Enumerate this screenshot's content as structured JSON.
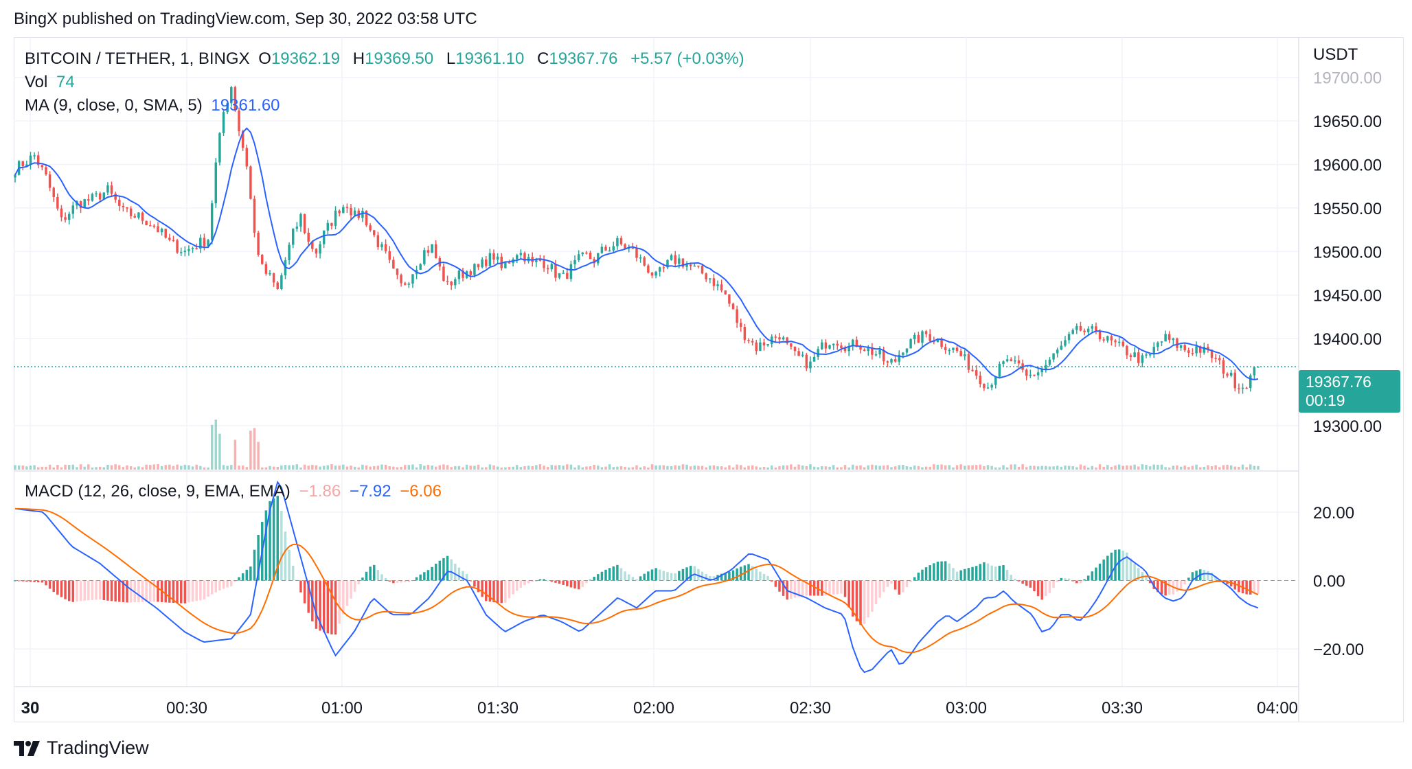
{
  "publisher_line": "BingX published on TradingView.com, Sep 30, 2022 03:58 UTC",
  "legend": {
    "symbol": "BITCOIN / TETHER, 1, BINGX",
    "o_label": "O",
    "o_value": "19362.19",
    "h_label": "H",
    "h_value": "19369.50",
    "l_label": "L",
    "l_value": "19361.10",
    "c_label": "C",
    "c_value": "19367.76",
    "change": "+5.57 (+0.03%)",
    "vol_label": "Vol",
    "vol_value": "74",
    "ma_label": "MA (9, close, 0, SMA, 5)",
    "ma_value": "19361.60",
    "macd_label": "MACD (12, 26, close, 9, EMA, EMA)",
    "macd_hist": "−1.86",
    "macd_line": "−7.92",
    "macd_signal": "−6.06"
  },
  "price_tag": {
    "price": "19367.76",
    "countdown": "00:19"
  },
  "axis_unit": "USDT",
  "brand": "TradingView",
  "colors": {
    "up": "#26a69a",
    "down": "#ef5350",
    "ma": "#2962ff",
    "signal": "#ff6d00",
    "grid": "#f0f3fa"
  },
  "chart_data": {
    "type": "candlestick",
    "price_axis": {
      "ticks": [
        "19700.00",
        "19650.00",
        "19600.00",
        "19550.00",
        "19500.00",
        "19450.00",
        "19400.00",
        "19300.00"
      ],
      "range": [
        19270,
        19710
      ]
    },
    "macd_axis": {
      "ticks": [
        "20.00",
        "0.00",
        "−20.00"
      ],
      "range": [
        -30,
        30
      ]
    },
    "time_axis": {
      "ticks": [
        "30",
        "00:30",
        "01:00",
        "01:30",
        "02:00",
        "02:30",
        "03:00",
        "03:30",
        "04:00"
      ]
    },
    "anchors": [
      [
        0,
        19595
      ],
      [
        5,
        19610
      ],
      [
        8,
        19585
      ],
      [
        12,
        19535
      ],
      [
        16,
        19555
      ],
      [
        20,
        19560
      ],
      [
        24,
        19570
      ],
      [
        28,
        19545
      ],
      [
        32,
        19540
      ],
      [
        36,
        19530
      ],
      [
        40,
        19510
      ],
      [
        44,
        19500
      ],
      [
        48,
        19510
      ],
      [
        50,
        19515
      ],
      [
        52,
        19600
      ],
      [
        54,
        19660
      ],
      [
        56,
        19690
      ],
      [
        58,
        19640
      ],
      [
        60,
        19600
      ],
      [
        62,
        19520
      ],
      [
        64,
        19480
      ],
      [
        66,
        19470
      ],
      [
        68,
        19455
      ],
      [
        70,
        19490
      ],
      [
        72,
        19520
      ],
      [
        74,
        19540
      ],
      [
        76,
        19510
      ],
      [
        78,
        19500
      ],
      [
        80,
        19520
      ],
      [
        82,
        19535
      ],
      [
        84,
        19550
      ],
      [
        86,
        19555
      ],
      [
        88,
        19540
      ],
      [
        90,
        19545
      ],
      [
        92,
        19525
      ],
      [
        94,
        19510
      ],
      [
        96,
        19495
      ],
      [
        98,
        19475
      ],
      [
        100,
        19460
      ],
      [
        102,
        19470
      ],
      [
        104,
        19485
      ],
      [
        106,
        19500
      ],
      [
        108,
        19505
      ],
      [
        110,
        19480
      ],
      [
        112,
        19460
      ],
      [
        114,
        19470
      ],
      [
        116,
        19475
      ],
      [
        118,
        19480
      ],
      [
        120,
        19480
      ],
      [
        122,
        19490
      ],
      [
        124,
        19495
      ],
      [
        126,
        19480
      ],
      [
        128,
        19490
      ],
      [
        130,
        19500
      ],
      [
        132,
        19495
      ],
      [
        134,
        19485
      ],
      [
        136,
        19490
      ],
      [
        138,
        19485
      ],
      [
        140,
        19475
      ],
      [
        142,
        19470
      ],
      [
        144,
        19480
      ],
      [
        146,
        19490
      ],
      [
        148,
        19495
      ],
      [
        150,
        19490
      ],
      [
        152,
        19500
      ],
      [
        154,
        19505
      ],
      [
        156,
        19510
      ],
      [
        158,
        19505
      ],
      [
        160,
        19500
      ],
      [
        162,
        19490
      ],
      [
        164,
        19480
      ],
      [
        166,
        19470
      ],
      [
        168,
        19480
      ],
      [
        170,
        19490
      ],
      [
        172,
        19490
      ],
      [
        174,
        19485
      ],
      [
        176,
        19480
      ],
      [
        178,
        19475
      ],
      [
        180,
        19470
      ],
      [
        182,
        19460
      ],
      [
        184,
        19450
      ],
      [
        186,
        19430
      ],
      [
        188,
        19410
      ],
      [
        190,
        19400
      ],
      [
        192,
        19390
      ],
      [
        194,
        19395
      ],
      [
        196,
        19400
      ],
      [
        198,
        19405
      ],
      [
        200,
        19390
      ],
      [
        202,
        19380
      ],
      [
        204,
        19375
      ],
      [
        206,
        19370
      ],
      [
        208,
        19385
      ],
      [
        210,
        19395
      ],
      [
        212,
        19400
      ],
      [
        214,
        19395
      ],
      [
        216,
        19390
      ],
      [
        218,
        19395
      ],
      [
        220,
        19390
      ],
      [
        222,
        19385
      ],
      [
        224,
        19380
      ],
      [
        226,
        19370
      ],
      [
        228,
        19375
      ],
      [
        230,
        19390
      ],
      [
        232,
        19395
      ],
      [
        234,
        19400
      ],
      [
        236,
        19405
      ],
      [
        238,
        19400
      ],
      [
        240,
        19395
      ],
      [
        242,
        19390
      ],
      [
        244,
        19385
      ],
      [
        246,
        19375
      ],
      [
        248,
        19365
      ],
      [
        250,
        19355
      ],
      [
        252,
        19345
      ],
      [
        254,
        19360
      ],
      [
        256,
        19370
      ],
      [
        258,
        19375
      ],
      [
        260,
        19365
      ],
      [
        262,
        19355
      ],
      [
        264,
        19360
      ],
      [
        266,
        19365
      ],
      [
        268,
        19375
      ],
      [
        270,
        19385
      ],
      [
        272,
        19395
      ],
      [
        274,
        19405
      ],
      [
        276,
        19410
      ],
      [
        278,
        19405
      ],
      [
        280,
        19410
      ],
      [
        282,
        19400
      ],
      [
        284,
        19395
      ],
      [
        286,
        19390
      ],
      [
        288,
        19385
      ],
      [
        290,
        19380
      ],
      [
        292,
        19375
      ],
      [
        294,
        19380
      ],
      [
        296,
        19395
      ],
      [
        298,
        19400
      ],
      [
        300,
        19395
      ],
      [
        302,
        19390
      ],
      [
        304,
        19385
      ],
      [
        306,
        19390
      ],
      [
        308,
        19385
      ],
      [
        310,
        19380
      ],
      [
        312,
        19370
      ],
      [
        314,
        19360
      ],
      [
        316,
        19350
      ],
      [
        318,
        19345
      ],
      [
        320,
        19355
      ],
      [
        322,
        19368
      ]
    ],
    "candle_count": 323,
    "last_close": 19367.76,
    "macd_anchors": [
      [
        0,
        21
      ],
      [
        6,
        20
      ],
      [
        12,
        10
      ],
      [
        18,
        5
      ],
      [
        24,
        -2
      ],
      [
        30,
        -8
      ],
      [
        36,
        -15
      ],
      [
        40,
        -18
      ],
      [
        46,
        -17
      ],
      [
        50,
        -10
      ],
      [
        52,
        5
      ],
      [
        54,
        20
      ],
      [
        56,
        30
      ],
      [
        60,
        10
      ],
      [
        64,
        -10
      ],
      [
        68,
        -22
      ],
      [
        72,
        -15
      ],
      [
        76,
        -5
      ],
      [
        80,
        -10
      ],
      [
        84,
        -10
      ],
      [
        88,
        -5
      ],
      [
        92,
        3
      ],
      [
        96,
        0
      ],
      [
        100,
        -10
      ],
      [
        104,
        -15
      ],
      [
        108,
        -12
      ],
      [
        112,
        -10
      ],
      [
        116,
        -12
      ],
      [
        120,
        -15
      ],
      [
        124,
        -10
      ],
      [
        128,
        -5
      ],
      [
        132,
        -8
      ],
      [
        136,
        -3
      ],
      [
        140,
        -3
      ],
      [
        144,
        2
      ],
      [
        148,
        0
      ],
      [
        152,
        3
      ],
      [
        156,
        8
      ],
      [
        160,
        6
      ],
      [
        164,
        -3
      ],
      [
        168,
        -5
      ],
      [
        172,
        -8
      ],
      [
        176,
        -10
      ],
      [
        178,
        -20
      ],
      [
        180,
        -27
      ],
      [
        182,
        -26
      ],
      [
        184,
        -23
      ],
      [
        186,
        -20
      ],
      [
        188,
        -25
      ],
      [
        190,
        -22
      ],
      [
        192,
        -18
      ],
      [
        194,
        -15
      ],
      [
        196,
        -12
      ],
      [
        198,
        -10
      ],
      [
        200,
        -12
      ],
      [
        202,
        -10
      ],
      [
        204,
        -8
      ],
      [
        206,
        -5
      ],
      [
        208,
        -5
      ],
      [
        210,
        -3
      ],
      [
        212,
        -6
      ],
      [
        214,
        -8
      ],
      [
        216,
        -10
      ],
      [
        218,
        -15
      ],
      [
        220,
        -14
      ],
      [
        222,
        -10
      ],
      [
        224,
        -10
      ],
      [
        226,
        -12
      ],
      [
        228,
        -9
      ],
      [
        230,
        -5
      ],
      [
        232,
        0
      ],
      [
        234,
        5
      ],
      [
        236,
        7
      ],
      [
        238,
        5
      ],
      [
        240,
        3
      ],
      [
        242,
        -2
      ],
      [
        244,
        -5
      ],
      [
        246,
        -6
      ],
      [
        248,
        -5
      ],
      [
        250,
        0
      ],
      [
        252,
        2
      ],
      [
        254,
        2
      ],
      [
        256,
        0
      ],
      [
        258,
        -2
      ],
      [
        260,
        -5
      ],
      [
        262,
        -7
      ],
      [
        264,
        -8
      ]
    ]
  }
}
